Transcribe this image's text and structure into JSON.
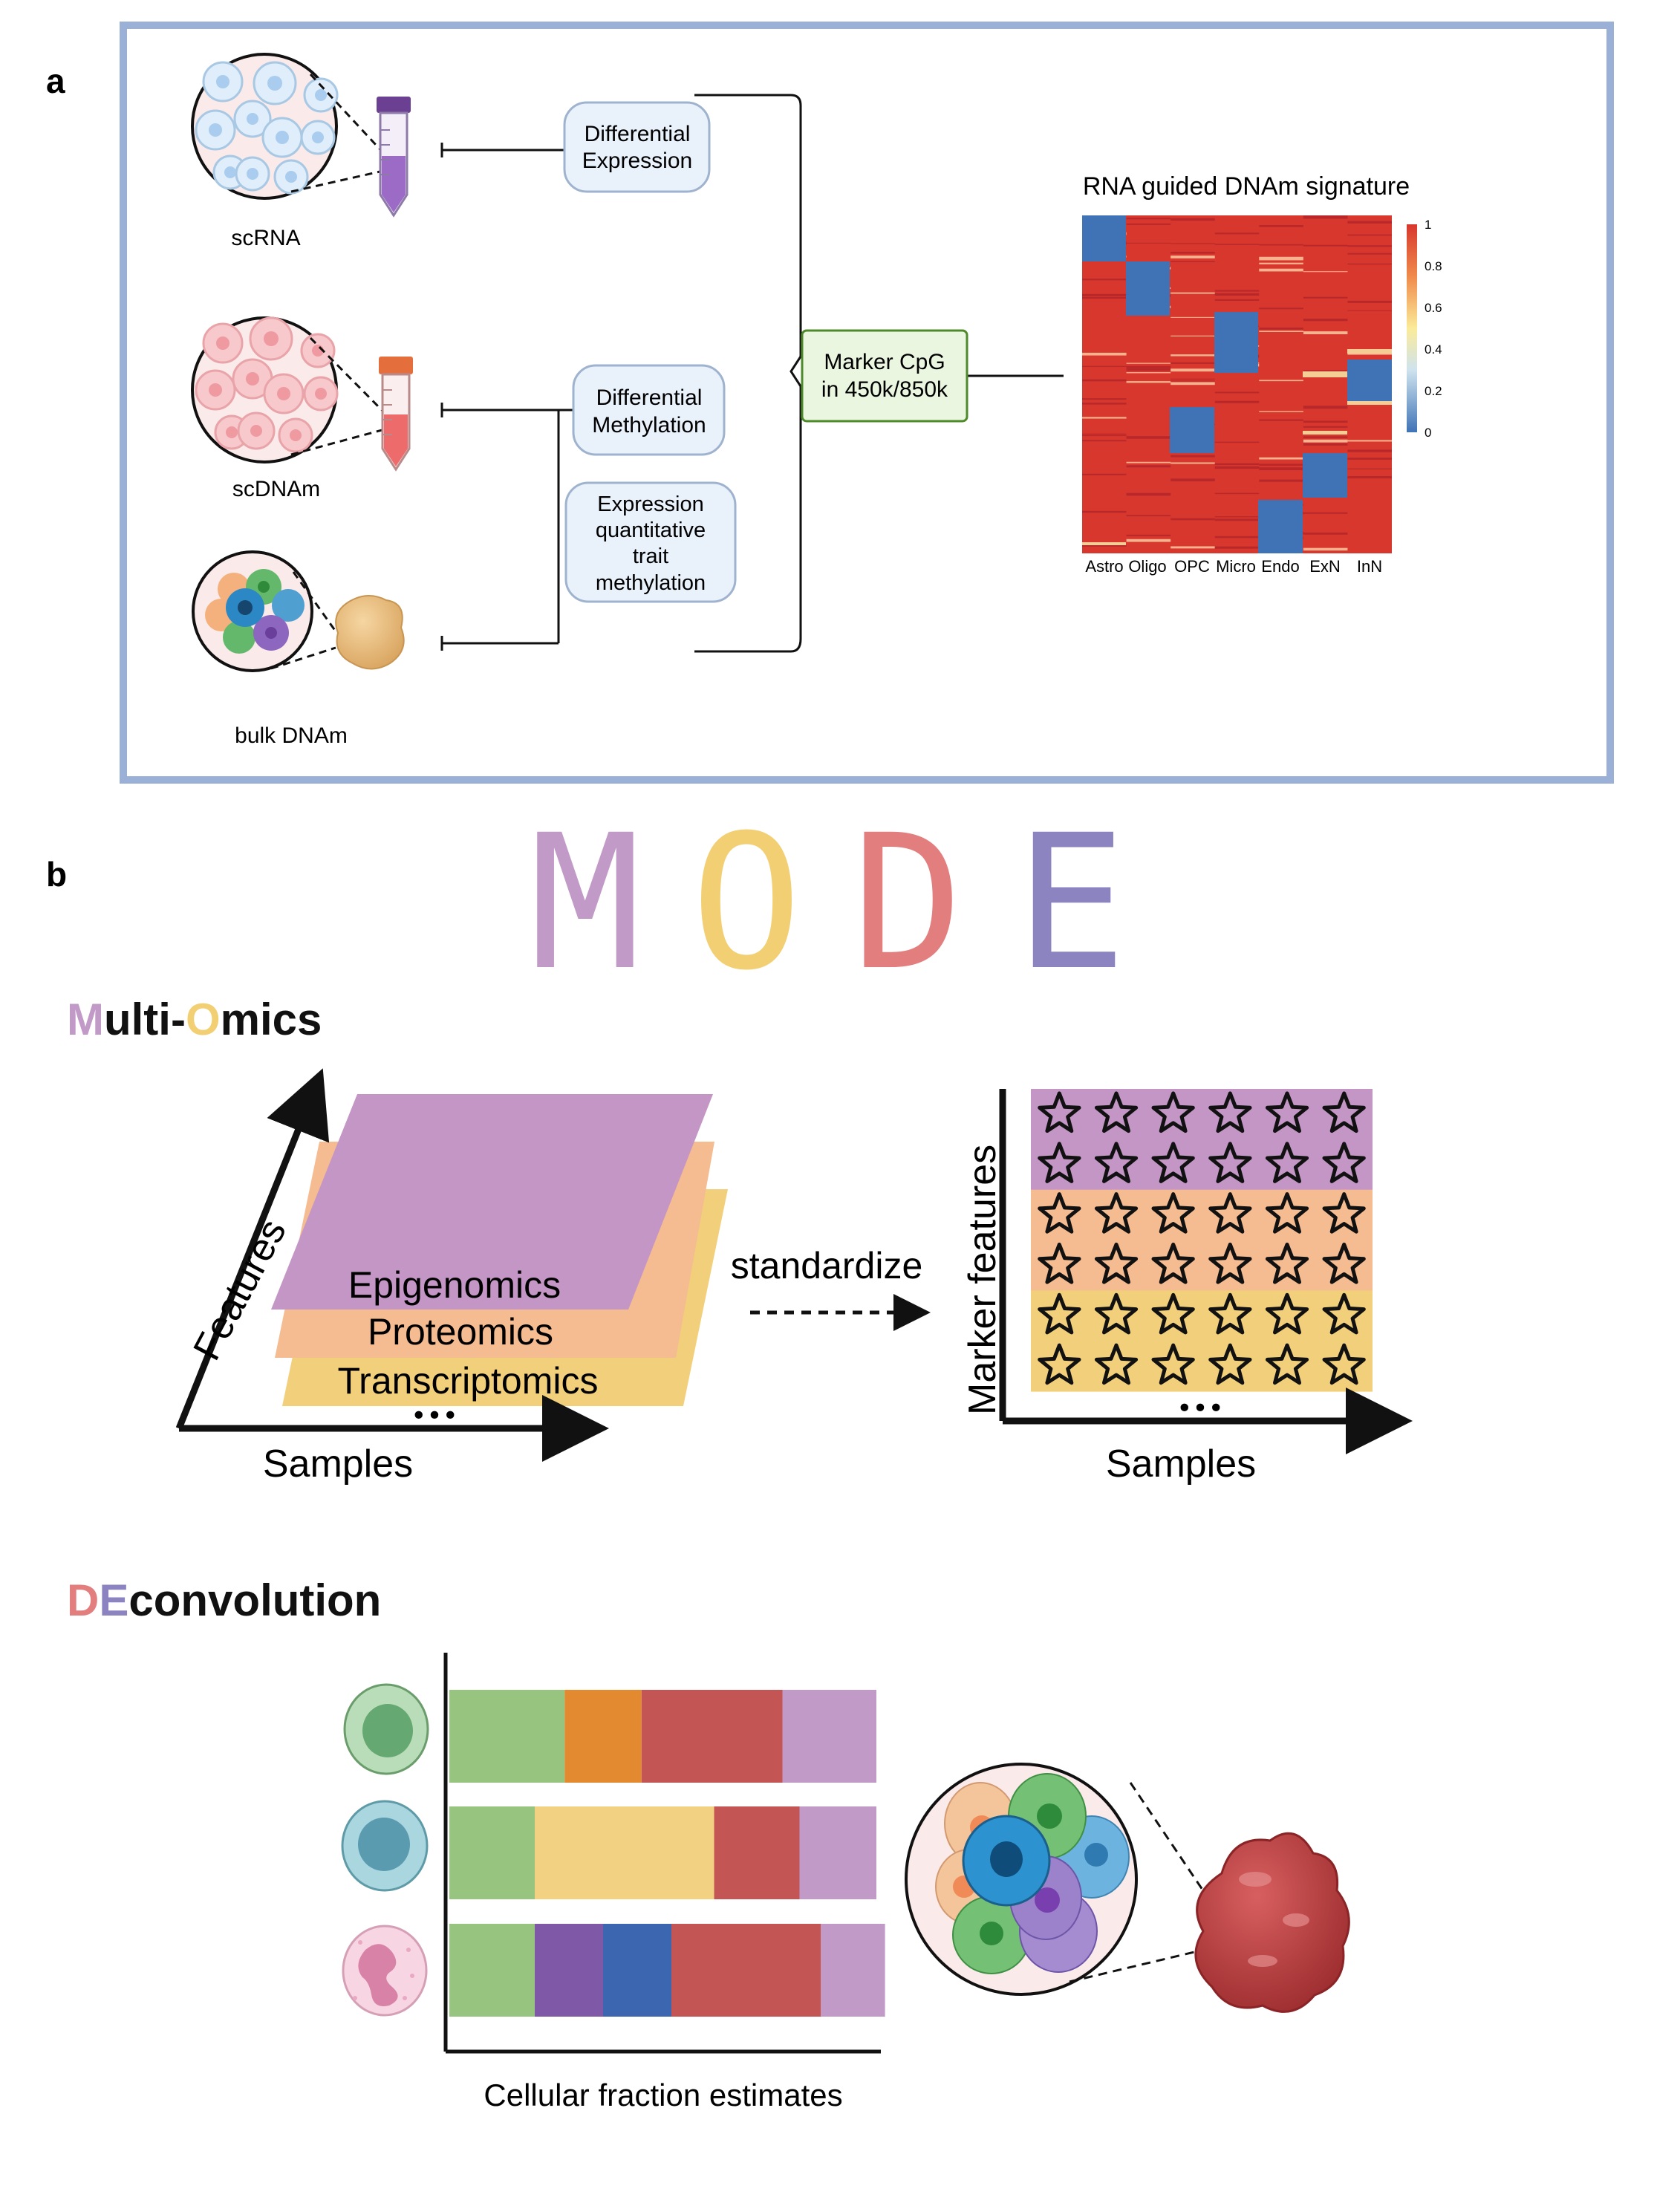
{
  "panel_a": {
    "label": "a",
    "sources": [
      "scRNA",
      "scDNAm",
      "bulk DNAm"
    ],
    "box_de": [
      "Differential",
      "Expression"
    ],
    "box_dm": [
      "Differential",
      "Methylation"
    ],
    "box_eqtm": [
      "Expression",
      "quantitative",
      "trait",
      "methylation"
    ],
    "box_marker": [
      "Marker CpG",
      "in 450k/850k"
    ],
    "heatmap_title": "RNA guided DNAm signature",
    "heatmap_columns": [
      "Astro",
      "Oligo",
      "OPC",
      "Micro",
      "Endo",
      "ExN",
      "InN"
    ],
    "colorbar_ticks": [
      "1",
      "0.8",
      "0.6",
      "0.4",
      "0.2",
      "0"
    ],
    "colors": {
      "frame": "#9bb0d6",
      "box_fill": "#e9f1fb",
      "box_border": "#9fb3cf",
      "marker_fill": "#eaf6df",
      "marker_border": "#4f8a2a",
      "heat_high": "#d8372d",
      "heat_low": "#3f73b6"
    }
  },
  "panel_b": {
    "label": "b",
    "mode_letters": [
      {
        "letter": "M",
        "color": "#c29ac7"
      },
      {
        "letter": "O",
        "color": "#f2cf72"
      },
      {
        "letter": "D",
        "color": "#e37e7e"
      },
      {
        "letter": "E",
        "color": "#8b84c0"
      }
    ],
    "multiomics_title": {
      "lead1": "M",
      "mid": "ulti-",
      "lead2": "O",
      "rest": "mics"
    },
    "layers": [
      "Epigenomics",
      "Proteomics",
      "Transcriptomics"
    ],
    "left_axis_y": "Features",
    "left_axis_x": "Samples",
    "ellipsis": "•••",
    "arrow_label": "standardize",
    "right_axis_y": "Marker features",
    "right_axis_x": "Samples",
    "star_grid": {
      "rows": 6,
      "cols": 6,
      "row_colors": [
        "#c396c6",
        "#c396c6",
        "#f5bb91",
        "#f5bb91",
        "#f2cf7a",
        "#f2cf7a"
      ]
    },
    "deconv_title": {
      "lead1": "D",
      "lead2": "E",
      "rest": "convolution"
    },
    "deconv_xlabel": "Cellular fraction estimates",
    "fraction_bars": [
      {
        "cell": "green-cell-icon",
        "segments": [
          {
            "fraction": 0.27,
            "color": "#97c47f"
          },
          {
            "fraction": 0.18,
            "color": "#e38a30"
          },
          {
            "fraction": 0.33,
            "color": "#c45555"
          },
          {
            "fraction": 0.22,
            "color": "#c29ac7"
          }
        ]
      },
      {
        "cell": "blue-cell-icon",
        "segments": [
          {
            "fraction": 0.2,
            "color": "#97c47f"
          },
          {
            "fraction": 0.42,
            "color": "#f2d282"
          },
          {
            "fraction": 0.2,
            "color": "#c45555"
          },
          {
            "fraction": 0.18,
            "color": "#c29ac7"
          }
        ]
      },
      {
        "cell": "neutrophil-cell-icon",
        "segments": [
          {
            "fraction": 0.2,
            "color": "#97c47f"
          },
          {
            "fraction": 0.16,
            "color": "#8058a8"
          },
          {
            "fraction": 0.16,
            "color": "#3c66b0"
          },
          {
            "fraction": 0.35,
            "color": "#c45555"
          },
          {
            "fraction": 0.15,
            "color": "#c29ac7"
          }
        ]
      }
    ]
  }
}
